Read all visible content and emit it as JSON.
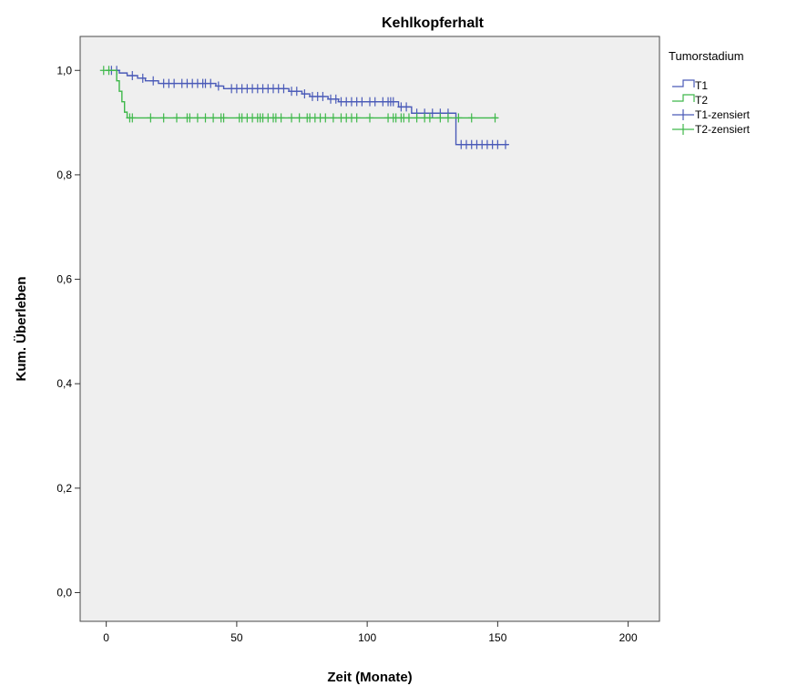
{
  "chart_data": {
    "type": "line",
    "subtype": "kaplan-meier",
    "title": "Kehlkopferhalt",
    "xlabel": "Zeit (Monate)",
    "ylabel": "Kum. Überleben",
    "xlim": [
      -10,
      212
    ],
    "ylim": [
      -0.055,
      1.065
    ],
    "x_ticks": [
      0,
      50,
      100,
      150,
      200
    ],
    "x_tick_labels": [
      "0",
      "50",
      "100",
      "150",
      "200"
    ],
    "y_ticks": [
      0.0,
      0.2,
      0.4,
      0.6,
      0.8,
      1.0
    ],
    "y_tick_labels": [
      "0,0",
      "0,2",
      "0,4",
      "0,6",
      "0,8",
      "1,0"
    ],
    "grid": false,
    "plot_background": "#efefef",
    "legend": {
      "title": "Tumorstadium",
      "placement": "outside-right",
      "entries": [
        {
          "label": "T1",
          "kind": "step",
          "series": 0
        },
        {
          "label": "T2",
          "kind": "step",
          "series": 1
        },
        {
          "label": "T1-zensiert",
          "kind": "censor",
          "series": 0
        },
        {
          "label": "T2-zensiert",
          "kind": "censor",
          "series": 1
        }
      ]
    },
    "series": [
      {
        "name": "T1",
        "color": "#4a5ab8",
        "steps": [
          [
            0,
            1.0
          ],
          [
            5,
            0.995
          ],
          [
            8,
            0.99
          ],
          [
            12,
            0.985
          ],
          [
            15,
            0.98
          ],
          [
            20,
            0.975
          ],
          [
            42,
            0.97
          ],
          [
            45,
            0.965
          ],
          [
            70,
            0.96
          ],
          [
            75,
            0.955
          ],
          [
            78,
            0.95
          ],
          [
            85,
            0.945
          ],
          [
            89,
            0.94
          ],
          [
            112,
            0.93
          ],
          [
            117,
            0.918
          ],
          [
            134,
            0.858
          ],
          [
            154,
            0.858
          ]
        ],
        "censored_x": [
          2,
          4,
          10,
          14,
          18,
          22,
          24,
          26,
          29,
          31,
          33,
          35,
          37,
          38,
          40,
          43,
          48,
          50,
          52,
          54,
          56,
          58,
          60,
          62,
          64,
          66,
          68,
          71,
          73,
          76,
          79,
          81,
          83,
          86,
          88,
          90,
          92,
          94,
          96,
          98,
          101,
          103,
          106,
          108,
          109,
          110,
          113,
          115,
          119,
          122,
          125,
          128,
          131,
          136,
          138,
          140,
          142,
          144,
          146,
          148,
          150,
          153
        ]
      },
      {
        "name": "T2",
        "color": "#3eb84a",
        "steps": [
          [
            0,
            1.0
          ],
          [
            4,
            0.98
          ],
          [
            5,
            0.96
          ],
          [
            6,
            0.94
          ],
          [
            7,
            0.92
          ],
          [
            8,
            0.909
          ],
          [
            150,
            0.909
          ]
        ],
        "censored_x": [
          -1,
          1,
          9,
          10,
          17,
          22,
          27,
          31,
          32,
          35,
          38,
          41,
          44,
          45,
          51,
          52,
          54,
          56,
          58,
          59,
          60,
          62,
          64,
          65,
          67,
          71,
          74,
          77,
          78,
          80,
          82,
          84,
          87,
          90,
          92,
          94,
          96,
          101,
          108,
          110,
          111,
          113,
          114,
          116,
          119,
          122,
          124,
          128,
          131,
          135,
          140,
          149
        ]
      }
    ]
  }
}
